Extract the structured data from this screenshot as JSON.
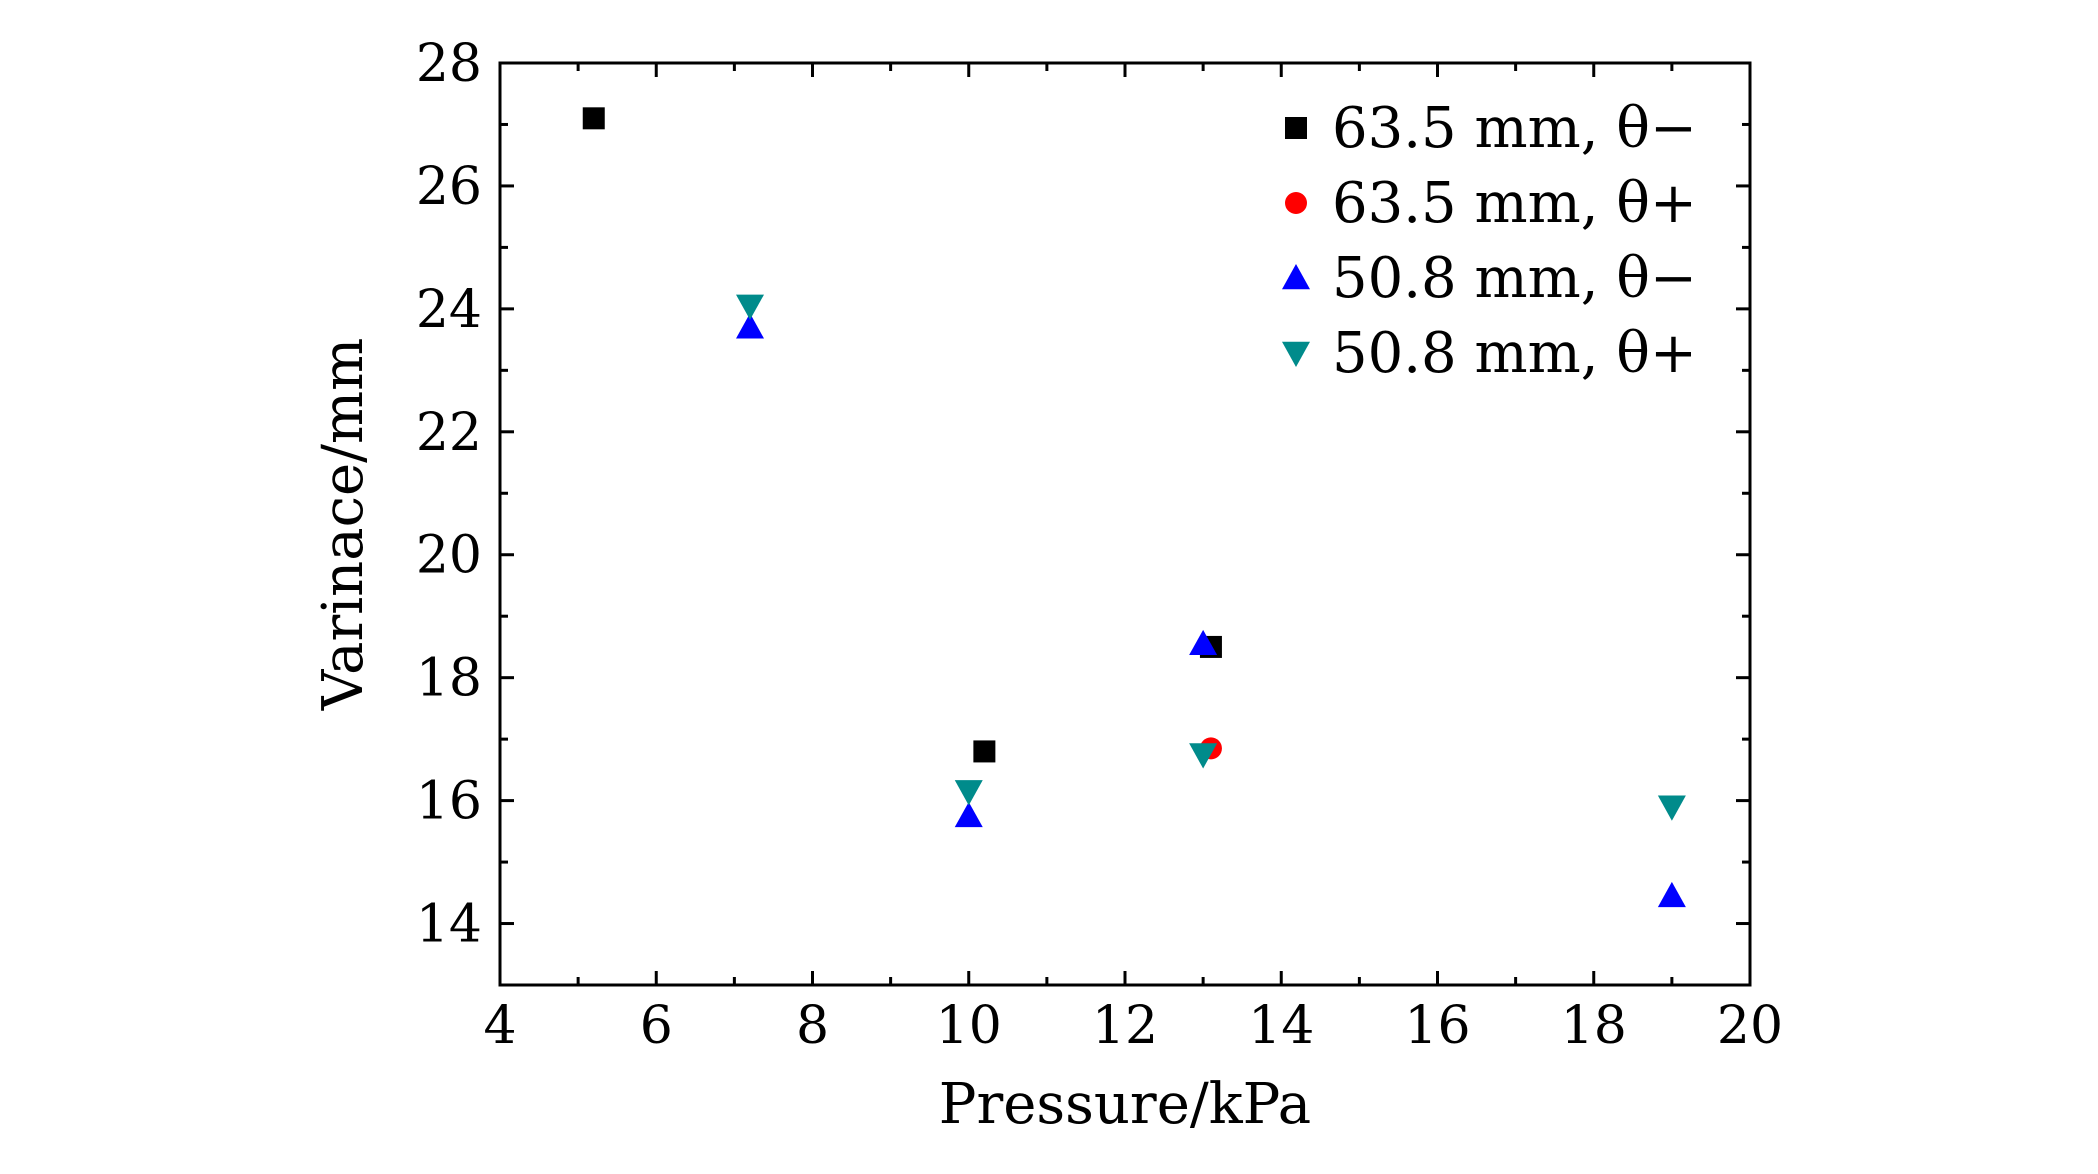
{
  "chart_data": {
    "type": "scatter",
    "title": "",
    "xlabel": "Pressure/kPa",
    "ylabel": "Varinace/mm",
    "xlim": [
      4,
      20
    ],
    "ylim": [
      13,
      28
    ],
    "xticks": [
      4,
      6,
      8,
      10,
      12,
      14,
      16,
      18,
      20
    ],
    "xtick_labels": [
      "4",
      "6",
      "8",
      "10",
      "12",
      "14",
      "16",
      "18",
      "20"
    ],
    "yticks": [
      14,
      16,
      18,
      20,
      22,
      24,
      26,
      28
    ],
    "ytick_labels": [
      "14",
      "16",
      "18",
      "20",
      "22",
      "24",
      "26",
      "28"
    ],
    "grid": false,
    "legend_position": "top-right",
    "series": [
      {
        "name": "63.5 mm, θ−",
        "marker": "square",
        "color": "#000000",
        "points": [
          [
            5.2,
            27.1
          ],
          [
            10.2,
            16.8
          ],
          [
            13.1,
            18.5
          ]
        ]
      },
      {
        "name": "63.5 mm, θ+",
        "marker": "circle",
        "color": "#ff0000",
        "points": [
          [
            13.1,
            16.85
          ]
        ]
      },
      {
        "name": "50.8 mm, θ−",
        "marker": "triangle-up",
        "color": "#0000ff",
        "points": [
          [
            7.2,
            23.7
          ],
          [
            10.0,
            15.75
          ],
          [
            13.0,
            18.55
          ],
          [
            19.0,
            14.45
          ]
        ]
      },
      {
        "name": "50.8 mm, θ+",
        "marker": "triangle-down",
        "color": "#008b8b",
        "points": [
          [
            7.2,
            24.05
          ],
          [
            10.0,
            16.15
          ],
          [
            13.0,
            16.75
          ],
          [
            19.0,
            15.9
          ]
        ]
      }
    ]
  }
}
